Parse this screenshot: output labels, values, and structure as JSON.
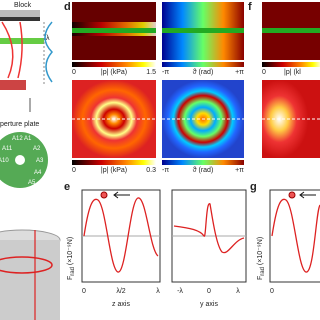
{
  "left": {
    "block_label": "Block",
    "lambda": "λ",
    "aperture_label": "perture plate",
    "apertures": [
      "A12",
      "A1",
      "A11",
      "A2",
      "A10",
      "A3",
      "A4",
      "A5"
    ]
  },
  "panels": {
    "d": {
      "letter": "d",
      "colorbars": [
        {
          "min": "0",
          "label": "|p| (kPa)",
          "max": "1.5"
        },
        {
          "min": "-π",
          "label": "ϑ (rad)",
          "max": "+π"
        },
        {
          "min": "0",
          "label": "|p| (kPa)",
          "max": "0.3"
        },
        {
          "min": "-π",
          "label": "ϑ (rad)",
          "max": "+π"
        }
      ]
    },
    "f": {
      "letter": "f",
      "colorbars": [
        {
          "min": "0",
          "label": "|p| (kl"
        }
      ]
    },
    "e": {
      "letter": "e",
      "ylabel": "F",
      "ysub": "rad",
      "yunit": " (×10⁻⁹N)",
      "z_ticks": [
        "0",
        "λ/2",
        "λ"
      ],
      "z_label": "z axis",
      "y_ticks": [
        "-λ",
        "0",
        "λ"
      ],
      "y_label": "y axis"
    },
    "g": {
      "letter": "g",
      "ylabel": "F",
      "ysub": "rad",
      "yunit": " (×10⁻⁹N)",
      "z_ticks": [
        "0"
      ]
    }
  }
}
